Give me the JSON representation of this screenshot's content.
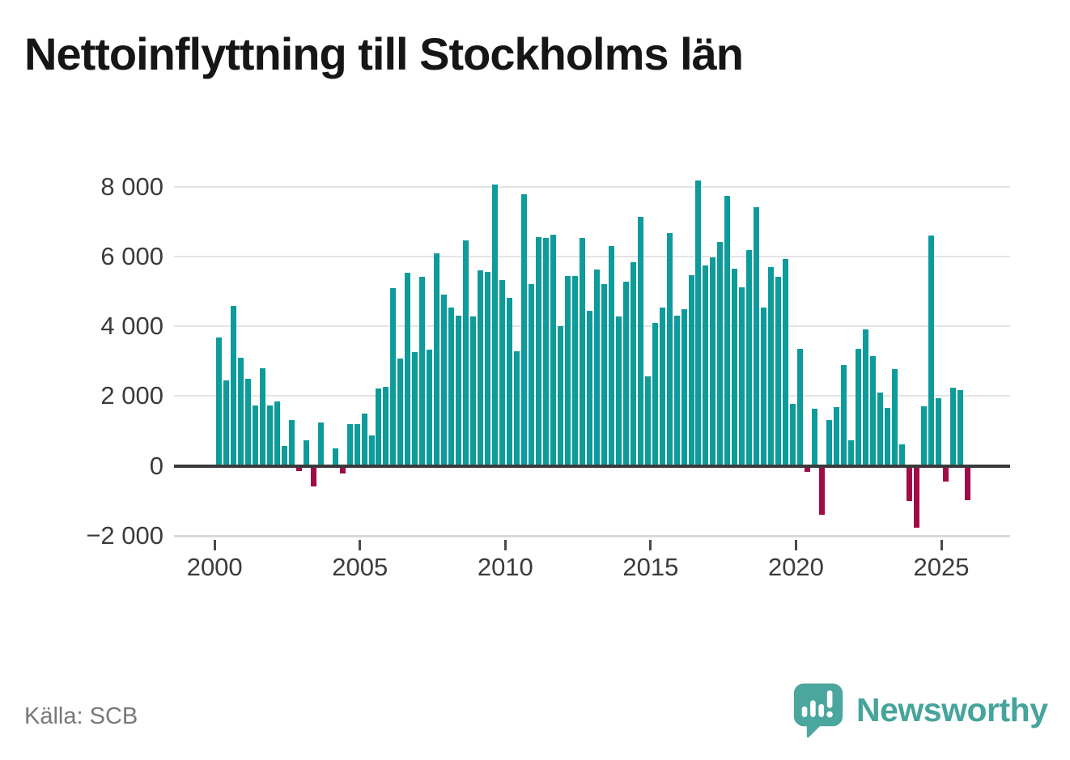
{
  "title": "Nettoinflyttning till Stockholms län",
  "source": "Källa: SCB",
  "branding": {
    "logo_text": "Newsworthy",
    "logo_color": "#45a49b",
    "logo_mark_color": "#4ba69d",
    "logo_icon": "speech-bubble-with-bar-chart-and-exclamation"
  },
  "chart_data": {
    "type": "bar",
    "title": "Nettoinflyttning till Stockholms län",
    "xlabel": "",
    "ylabel": "",
    "frequency": "quarterly",
    "start_period": "2000 Q1",
    "end_period": "2025 Q4",
    "x_tick_labels": [
      "2000",
      "2005",
      "2010",
      "2015",
      "2020",
      "2025"
    ],
    "y_tick_labels": [
      "8 000",
      "6 000",
      "4 000",
      "2 000",
      "0",
      "−2 000"
    ],
    "y_tick_values": [
      8000,
      6000,
      4000,
      2000,
      0,
      -2000
    ],
    "ylim": [
      -2100,
      8400
    ],
    "grid": true,
    "legend": false,
    "positive_color": "#0d9b9b",
    "negative_color": "#a00d46",
    "values": [
      3680,
      2460,
      4580,
      3090,
      2500,
      1740,
      2790,
      1740,
      1850,
      570,
      1310,
      -160,
      730,
      -590,
      1250,
      30,
      500,
      -220,
      1190,
      1190,
      1490,
      880,
      2220,
      2260,
      5090,
      3070,
      5540,
      3270,
      5420,
      3330,
      6090,
      4900,
      4530,
      4300,
      6460,
      4280,
      5600,
      5560,
      8070,
      5340,
      4810,
      3290,
      7790,
      5220,
      6570,
      6540,
      6640,
      4010,
      5450,
      5450,
      6540,
      4440,
      5620,
      5220,
      6310,
      4290,
      5290,
      5840,
      7150,
      2560,
      4110,
      4530,
      6670,
      4300,
      4500,
      5480,
      8180,
      5750,
      5990,
      6410,
      7740,
      5660,
      5110,
      6180,
      7410,
      4550,
      5700,
      5430,
      5930,
      1780,
      3350,
      -180,
      1630,
      -1410,
      1310,
      1690,
      2880,
      730,
      3360,
      3910,
      3150,
      2090,
      1650,
      2780,
      610,
      -1010,
      -1780,
      1700,
      6610,
      1930,
      -450,
      2240,
      2170,
      -980
    ]
  }
}
